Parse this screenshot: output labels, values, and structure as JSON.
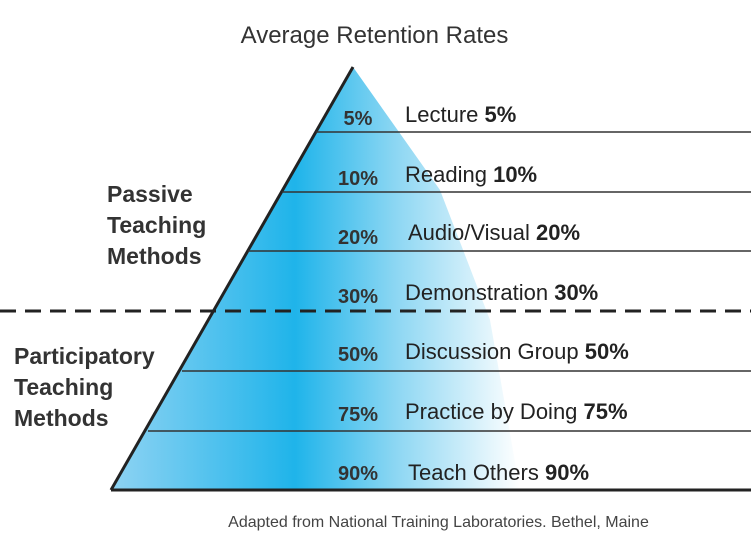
{
  "title": "Average Retention Rates",
  "groups": {
    "passive": [
      "Passive",
      "Teaching",
      "Methods"
    ],
    "participatory": [
      "Participatory",
      "Teaching",
      "Methods"
    ]
  },
  "levels": [
    {
      "percent": "5%",
      "name": "Lecture",
      "value": "5%"
    },
    {
      "percent": "10%",
      "name": "Reading",
      "value": "10%"
    },
    {
      "percent": "20%",
      "name": "Audio/Visual",
      "value": "20%"
    },
    {
      "percent": "30%",
      "name": "Demonstration",
      "value": "30%"
    },
    {
      "percent": "50%",
      "name": "Discussion Group",
      "value": "50%"
    },
    {
      "percent": "75%",
      "name": "Practice by Doing",
      "value": "75%"
    },
    {
      "percent": "90%",
      "name": "Teach Others",
      "value": "90%"
    }
  ],
  "footer": "Adapted from National Training Laboratories. Bethel, Maine",
  "colors": {
    "fill_dark": "#1fb4ea",
    "fill_light": "#ffffff",
    "lines": "#222222"
  }
}
